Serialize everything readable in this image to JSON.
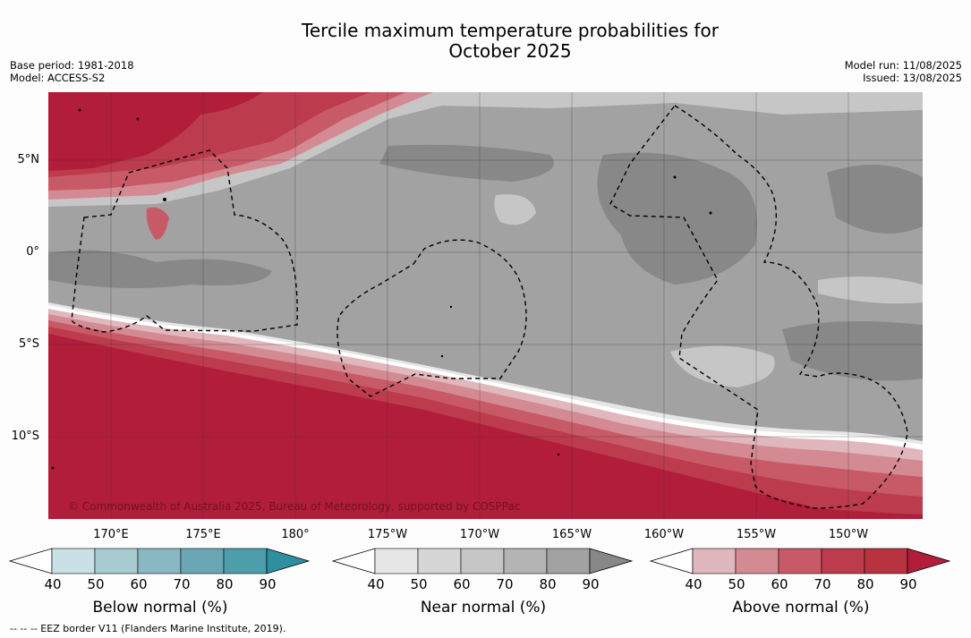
{
  "header": {
    "title_line1": "Tercile maximum temperature probabilities for",
    "title_line2": "October 2025",
    "base_period": "Base period: 1981-2018",
    "model": "Model: ACCESS-S2",
    "model_run": "Model run: 11/08/2025",
    "issued": "Issued: 13/08/2025"
  },
  "map": {
    "lat_labels": [
      "5°N",
      "0°",
      "5°S",
      "10°S"
    ],
    "lon_labels": [
      "170°E",
      "175°E",
      "180°",
      "175°W",
      "170°W",
      "165°W",
      "160°W",
      "155°W",
      "150°W"
    ],
    "copyright": "© Commonwealth of Australia 2025, Bureau of Meteorology, supported by COSPPac",
    "colors": {
      "above_90": "#b21d3a",
      "above_80": "#bc3b4d",
      "above_70": "#c85a68",
      "above_60": "#d48a93",
      "above_50": "#e0b7bc",
      "near_90": "#888888",
      "near_80": "#a2a2a2",
      "near_70": "#b4b4b4",
      "near_60": "#c6c6c6",
      "near_50": "#d6d6d6",
      "near_40": "#e6e6e6",
      "white": "#ffffff"
    }
  },
  "legends": [
    {
      "title": "Below normal (%)",
      "ticks": [
        "40",
        "50",
        "60",
        "70",
        "80",
        "90"
      ],
      "colors": [
        "#ffffff",
        "#c8e0e6",
        "#a8cad1",
        "#89b8c2",
        "#6aa7b4",
        "#4d9daa",
        "#2e8fa1"
      ]
    },
    {
      "title": "Near normal (%)",
      "ticks": [
        "40",
        "50",
        "60",
        "70",
        "80",
        "90"
      ],
      "colors": [
        "#ffffff",
        "#e6e6e6",
        "#d6d6d6",
        "#c6c6c6",
        "#b4b4b4",
        "#a2a2a2",
        "#888888"
      ]
    },
    {
      "title": "Above normal (%)",
      "ticks": [
        "40",
        "50",
        "60",
        "70",
        "80",
        "90"
      ],
      "colors": [
        "#ffffff",
        "#e0b7bc",
        "#d48a93",
        "#c85a68",
        "#bc3b4d",
        "#b8323f",
        "#b21d3a"
      ]
    }
  ],
  "footnote": "--  --  -- EEZ border V11 (Flanders Marine Institute, 2019)."
}
